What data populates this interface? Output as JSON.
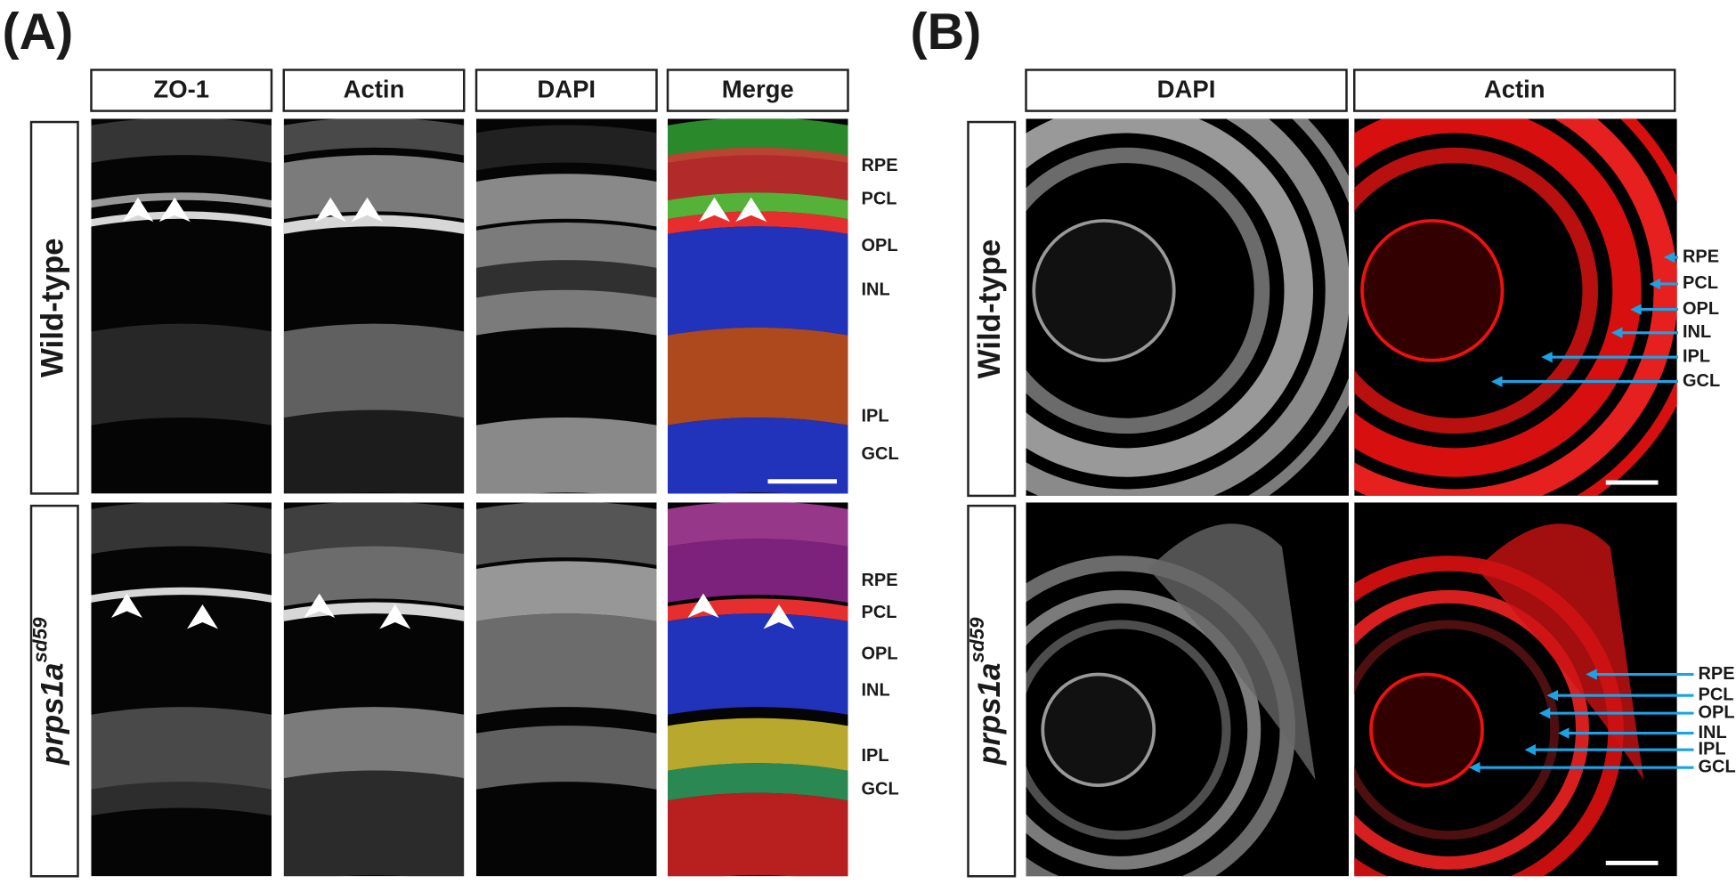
{
  "panels": [
    {
      "label": "(A)",
      "columns": [
        "ZO-1",
        "Actin",
        "DAPI",
        "Merge"
      ],
      "rows": [
        {
          "label": "Wild-type",
          "layers": [
            "RPE",
            "PCL",
            "OPL",
            "INL",
            "IPL",
            "GCL"
          ]
        },
        {
          "label": {
            "text": "prps1a",
            "superscript": "sd59"
          },
          "layers": [
            "RPE",
            "PCL",
            "OPL",
            "INL",
            "IPL",
            "GCL"
          ]
        }
      ]
    },
    {
      "label": "(B)",
      "columns": [
        "DAPI",
        "Actin"
      ],
      "rows": [
        {
          "label": "Wild-type",
          "layers": [
            "RPE",
            "PCL",
            "OPL",
            "INL",
            "IPL",
            "GCL"
          ]
        },
        {
          "label": {
            "text": "prps1a",
            "superscript": "sd59"
          },
          "layers": [
            "RPE",
            "PCL",
            "OPL",
            "INL",
            "IPL",
            "GCL"
          ]
        }
      ]
    }
  ]
}
